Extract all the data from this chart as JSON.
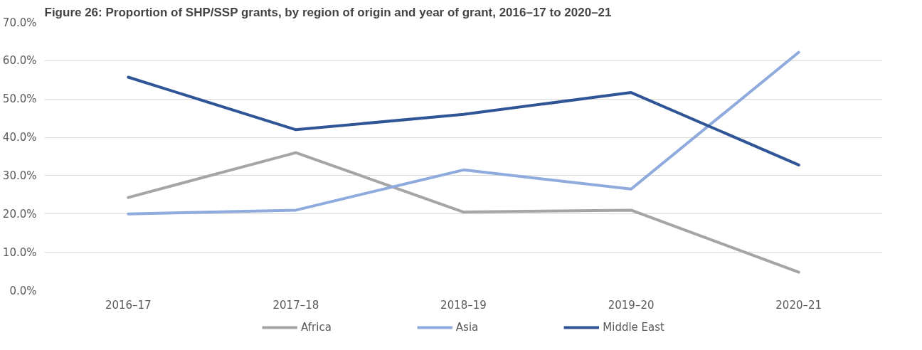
{
  "chart_data": {
    "type": "line",
    "title": "Figure 26: Proportion of SHP/SSP grants, by region of origin and year of grant, 2016–17 to 2020–21",
    "categories": [
      "2016–17",
      "2017–18",
      "2018–19",
      "2019–20",
      "2020–21"
    ],
    "series": [
      {
        "name": "Africa",
        "color": "#a5a5a5",
        "values": [
          24.3,
          36.0,
          20.5,
          21.0,
          4.8
        ]
      },
      {
        "name": "Asia",
        "color": "#8faadc",
        "values": [
          20.0,
          21.0,
          31.5,
          26.5,
          62.2
        ]
      },
      {
        "name": "Middle East",
        "color": "#2f5597",
        "values": [
          55.7,
          42.0,
          46.0,
          51.7,
          32.8
        ]
      }
    ],
    "ylim": [
      0,
      70
    ],
    "yticks": [
      {
        "value": 0,
        "label": "0.0%"
      },
      {
        "value": 10,
        "label": "10.0%"
      },
      {
        "value": 20,
        "label": "20.0%"
      },
      {
        "value": 30,
        "label": "30.0%"
      },
      {
        "value": 40,
        "label": "40.0%"
      },
      {
        "value": 50,
        "label": "50.0%"
      },
      {
        "value": 60,
        "label": "60.0%"
      },
      {
        "value": 70,
        "label": "70.0%"
      }
    ],
    "grid": "y",
    "legend": "bottom",
    "marker": "none",
    "line_style": "solid"
  }
}
